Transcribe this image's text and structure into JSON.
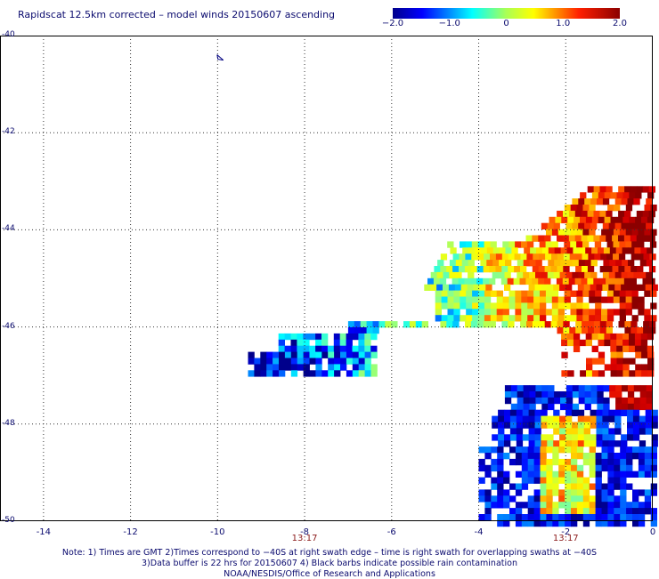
{
  "title": "Rapidscat 12.5km corrected – model winds 20150607 ascending",
  "colorbar": {
    "labels": [
      "−2.0",
      "−1.0",
      "0",
      "1.0",
      "2.0"
    ],
    "values": [
      -2.0,
      -1.0,
      0,
      1.0,
      2.0
    ],
    "range": [
      -2.0,
      2.0
    ],
    "colors": [
      "#00008b",
      "#0000ff",
      "#00ffff",
      "#ffff00",
      "#ff0000",
      "#8b0000"
    ]
  },
  "axes": {
    "lat_labels": [
      "-40",
      "-42",
      "-44",
      "-46",
      "-48",
      "-50"
    ],
    "lat_values": [
      -40,
      -42,
      -44,
      -46,
      -48,
      -50
    ],
    "lon_labels": [
      "-14",
      "-12",
      "-10",
      "-8",
      "-6",
      "-4",
      "-2",
      "0"
    ],
    "lon_values": [
      -14,
      -12,
      -10,
      -8,
      -6,
      -4,
      -2,
      0
    ],
    "lat_range": [
      -50,
      -40
    ],
    "lon_range": [
      -15,
      0
    ],
    "grid": "dotted"
  },
  "time_labels": [
    {
      "text": "13:17",
      "lon": -8
    },
    {
      "text": "13:17",
      "lon": -2
    }
  ],
  "notes": [
    "Note: 1) Times are GMT 2)Times correspond to −40S at right swath edge – time is right swath for overlapping swaths at −40S",
    "3)Data buffer is 22 hrs for 20150607 4) Black barbs indicate possible rain contamination",
    "NOAA/NESDIS/Office of Research and Applications"
  ],
  "colors": {
    "text": "#0a0a6e",
    "time_text": "#8b1a1a",
    "grid": "#333333"
  }
}
